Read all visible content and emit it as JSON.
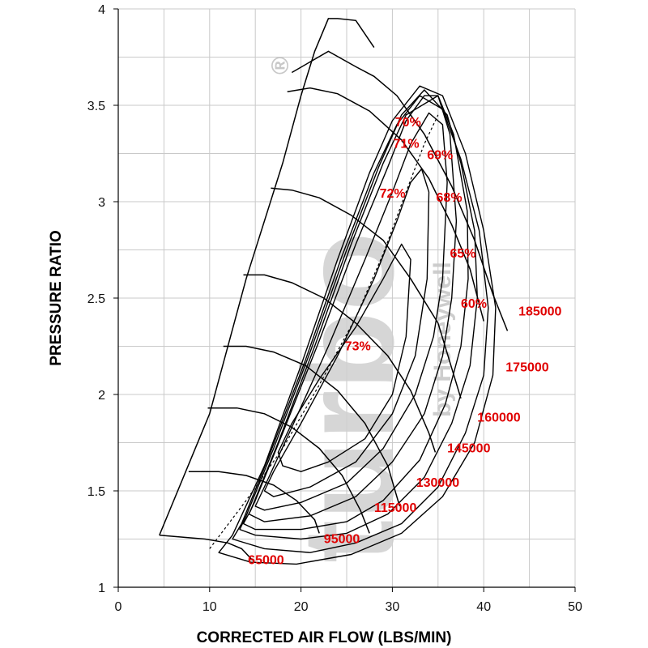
{
  "chart_data": {
    "type": "line",
    "title": "",
    "xlabel": "CORRECTED AIR FLOW (LBS/MIN)",
    "ylabel": "PRESSURE RATIO",
    "xlim": [
      0,
      50
    ],
    "ylim": [
      1,
      4
    ],
    "x_ticks": [
      "0",
      "10",
      "20",
      "30",
      "40",
      "50"
    ],
    "y_ticks": [
      "1",
      "1.5",
      "2",
      "2.5",
      "3",
      "3.5",
      "4"
    ],
    "grid": true,
    "label_color": "#e00000",
    "line_color": "#000000",
    "watermark": {
      "color": "#c8c8c8",
      "text": "turbo",
      "subtext": "by Honeywell",
      "registered_mark": "®"
    },
    "surge_line": {
      "x": [
        4.5,
        10,
        14,
        18,
        20,
        21.5,
        23,
        24,
        26,
        28
      ],
      "y": [
        1.27,
        1.9,
        2.6,
        3.2,
        3.55,
        3.78,
        3.95,
        3.95,
        3.94,
        3.8
      ]
    },
    "speed_lines": [
      {
        "name": "65000",
        "label": "65000",
        "x": [
          4.5,
          7,
          9.5,
          12,
          13.5,
          14.7
        ],
        "y": [
          1.27,
          1.26,
          1.25,
          1.23,
          1.2,
          1.14
        ]
      },
      {
        "name": "95000",
        "label": "95000",
        "x": [
          7.7,
          11,
          14,
          17,
          19.5,
          21.5,
          22
        ],
        "y": [
          1.6,
          1.6,
          1.58,
          1.53,
          1.45,
          1.35,
          1.28
        ]
      },
      {
        "name": "115000",
        "label": "115000",
        "x": [
          9.8,
          13,
          16,
          19,
          22,
          24.5,
          26.5,
          27.5
        ],
        "y": [
          1.93,
          1.93,
          1.9,
          1.83,
          1.72,
          1.58,
          1.4,
          1.28
        ]
      },
      {
        "name": "130000",
        "label": "130000",
        "x": [
          11.5,
          14,
          17,
          20.5,
          24,
          27,
          29.5,
          30.8
        ],
        "y": [
          2.25,
          2.25,
          2.22,
          2.15,
          2.02,
          1.85,
          1.63,
          1.42
        ]
      },
      {
        "name": "145000",
        "label": "145000",
        "x": [
          13.7,
          16,
          19,
          22.5,
          26,
          29.5,
          32,
          34,
          34.7
        ],
        "y": [
          2.62,
          2.62,
          2.58,
          2.5,
          2.37,
          2.2,
          2.02,
          1.8,
          1.7
        ]
      },
      {
        "name": "160000",
        "label": "160000",
        "x": [
          16.7,
          19,
          22,
          25.5,
          29,
          32,
          35,
          37.5
        ],
        "y": [
          3.07,
          3.06,
          3.02,
          2.93,
          2.8,
          2.6,
          2.37,
          1.98
        ]
      },
      {
        "name": "175000",
        "label": "175000",
        "x": [
          18.5,
          21,
          24,
          27.5,
          31,
          34,
          36.5,
          38.5,
          40
        ],
        "y": [
          3.57,
          3.59,
          3.56,
          3.47,
          3.32,
          3.12,
          2.88,
          2.65,
          2.38
        ]
      },
      {
        "name": "185000",
        "label": "185000",
        "x": [
          19,
          23,
          26,
          28,
          30.5,
          33.5,
          36.5,
          39,
          41,
          42.6
        ],
        "y": [
          3.67,
          3.78,
          3.7,
          3.65,
          3.55,
          3.35,
          3.08,
          2.8,
          2.52,
          2.33
        ]
      }
    ],
    "efficiency_islands": [
      {
        "name": "73%",
        "label": "73%",
        "x": [
          18,
          17.5,
          19,
          22,
          26,
          29,
          31,
          32,
          31.5,
          30,
          27,
          23,
          20,
          18
        ],
        "y": [
          1.63,
          1.7,
          1.85,
          2.08,
          2.35,
          2.6,
          2.78,
          2.7,
          2.3,
          2.0,
          1.77,
          1.65,
          1.6,
          1.63
        ]
      },
      {
        "name": "72%",
        "label": "72%",
        "x": [
          16,
          17,
          20,
          24,
          28,
          30.5,
          32,
          33.2,
          34,
          33.8,
          32.5,
          30,
          26,
          21,
          17,
          16
        ],
        "y": [
          1.5,
          1.6,
          1.85,
          2.2,
          2.6,
          2.9,
          3.1,
          3.17,
          3.05,
          2.6,
          2.2,
          1.9,
          1.65,
          1.52,
          1.47,
          1.5
        ]
      },
      {
        "name": "71%",
        "label": "71%",
        "x": [
          15,
          15.8,
          19,
          23,
          27,
          30,
          32,
          34,
          35.5,
          36,
          35.5,
          34.5,
          32.5,
          29,
          25,
          20,
          16,
          15
        ],
        "y": [
          1.42,
          1.5,
          1.83,
          2.25,
          2.7,
          3.05,
          3.3,
          3.46,
          3.4,
          3.1,
          2.6,
          2.3,
          2.0,
          1.72,
          1.54,
          1.44,
          1.4,
          1.42
        ]
      },
      {
        "name": "70%",
        "label": "70%",
        "x": [
          14.3,
          15,
          18,
          22,
          26,
          29.5,
          31.5,
          33.5,
          35,
          36.3,
          37,
          36.5,
          35.5,
          33.5,
          30,
          26,
          21,
          16,
          14.3
        ],
        "y": [
          1.38,
          1.45,
          1.8,
          2.28,
          2.78,
          3.18,
          3.42,
          3.55,
          3.55,
          3.35,
          2.9,
          2.5,
          2.2,
          1.9,
          1.65,
          1.47,
          1.37,
          1.34,
          1.38
        ]
      },
      {
        "name": "69%",
        "label": "69%",
        "x": [
          13.7,
          14.5,
          17.5,
          21.5,
          25.5,
          29,
          31.5,
          35,
          36.7,
          38.2,
          38.3,
          37.5,
          35.8,
          33,
          29,
          25,
          20,
          15,
          13.7
        ],
        "y": [
          1.33,
          1.4,
          1.75,
          2.25,
          2.78,
          3.2,
          3.45,
          3.55,
          3.35,
          2.95,
          2.6,
          2.25,
          1.95,
          1.66,
          1.45,
          1.34,
          1.3,
          1.3,
          1.33
        ]
      },
      {
        "name": "68%",
        "label": "68%",
        "x": [
          13.3,
          14,
          17,
          21,
          25,
          28.5,
          31,
          33.5,
          36,
          37.5,
          39,
          39.3,
          38.5,
          36.5,
          33.5,
          29.5,
          25,
          20,
          15,
          13.3
        ],
        "y": [
          1.3,
          1.37,
          1.72,
          2.22,
          2.75,
          3.18,
          3.45,
          3.58,
          3.45,
          3.2,
          2.85,
          2.5,
          2.15,
          1.85,
          1.57,
          1.38,
          1.28,
          1.25,
          1.27,
          1.3
        ]
      },
      {
        "name": "65%",
        "label": "65%",
        "x": [
          12.5,
          13.5,
          16.5,
          20.5,
          24.5,
          28,
          30.5,
          33,
          35.5,
          37.5,
          39.5,
          40.5,
          40,
          38,
          35,
          31,
          26,
          21,
          16,
          12.5
        ],
        "y": [
          1.25,
          1.33,
          1.68,
          2.18,
          2.72,
          3.15,
          3.4,
          3.55,
          3.48,
          3.22,
          2.85,
          2.45,
          2.1,
          1.8,
          1.52,
          1.33,
          1.23,
          1.18,
          1.2,
          1.25
        ]
      },
      {
        "name": "60%",
        "label": "60%",
        "x": [
          11,
          12.5,
          16,
          20,
          24,
          27.5,
          30,
          33,
          35.5,
          38,
          40,
          41.3,
          41,
          39,
          35.5,
          31,
          25.5,
          19.5,
          14.5,
          11
        ],
        "y": [
          1.18,
          1.27,
          1.63,
          2.15,
          2.7,
          3.15,
          3.42,
          3.6,
          3.55,
          3.25,
          2.85,
          2.45,
          2.1,
          1.75,
          1.47,
          1.28,
          1.17,
          1.12,
          1.13,
          1.18
        ]
      }
    ],
    "peak_efficiency_line": {
      "x": [
        10,
        14,
        18,
        22,
        26,
        29,
        31.5,
        33.5,
        35
      ],
      "y": [
        1.2,
        1.45,
        1.72,
        2.05,
        2.4,
        2.73,
        3.05,
        3.3,
        3.45
      ]
    },
    "speed_label_positions": [
      {
        "x": 14.2,
        "y": 1.12
      },
      {
        "x": 22.5,
        "y": 1.23
      },
      {
        "x": 28,
        "y": 1.39
      },
      {
        "x": 32.6,
        "y": 1.52
      },
      {
        "x": 36,
        "y": 1.7
      },
      {
        "x": 39.3,
        "y": 1.86
      },
      {
        "x": 42.4,
        "y": 2.12
      },
      {
        "x": 43.8,
        "y": 2.41
      }
    ],
    "efficiency_label_positions": [
      {
        "x": 24.8,
        "y": 2.23
      },
      {
        "x": 28.6,
        "y": 3.02
      },
      {
        "x": 30.1,
        "y": 3.28
      },
      {
        "x": 30.3,
        "y": 3.39
      },
      {
        "x": 33.8,
        "y": 3.22
      },
      {
        "x": 34.8,
        "y": 3.0
      },
      {
        "x": 36.3,
        "y": 2.71
      },
      {
        "x": 37.5,
        "y": 2.45
      }
    ]
  }
}
